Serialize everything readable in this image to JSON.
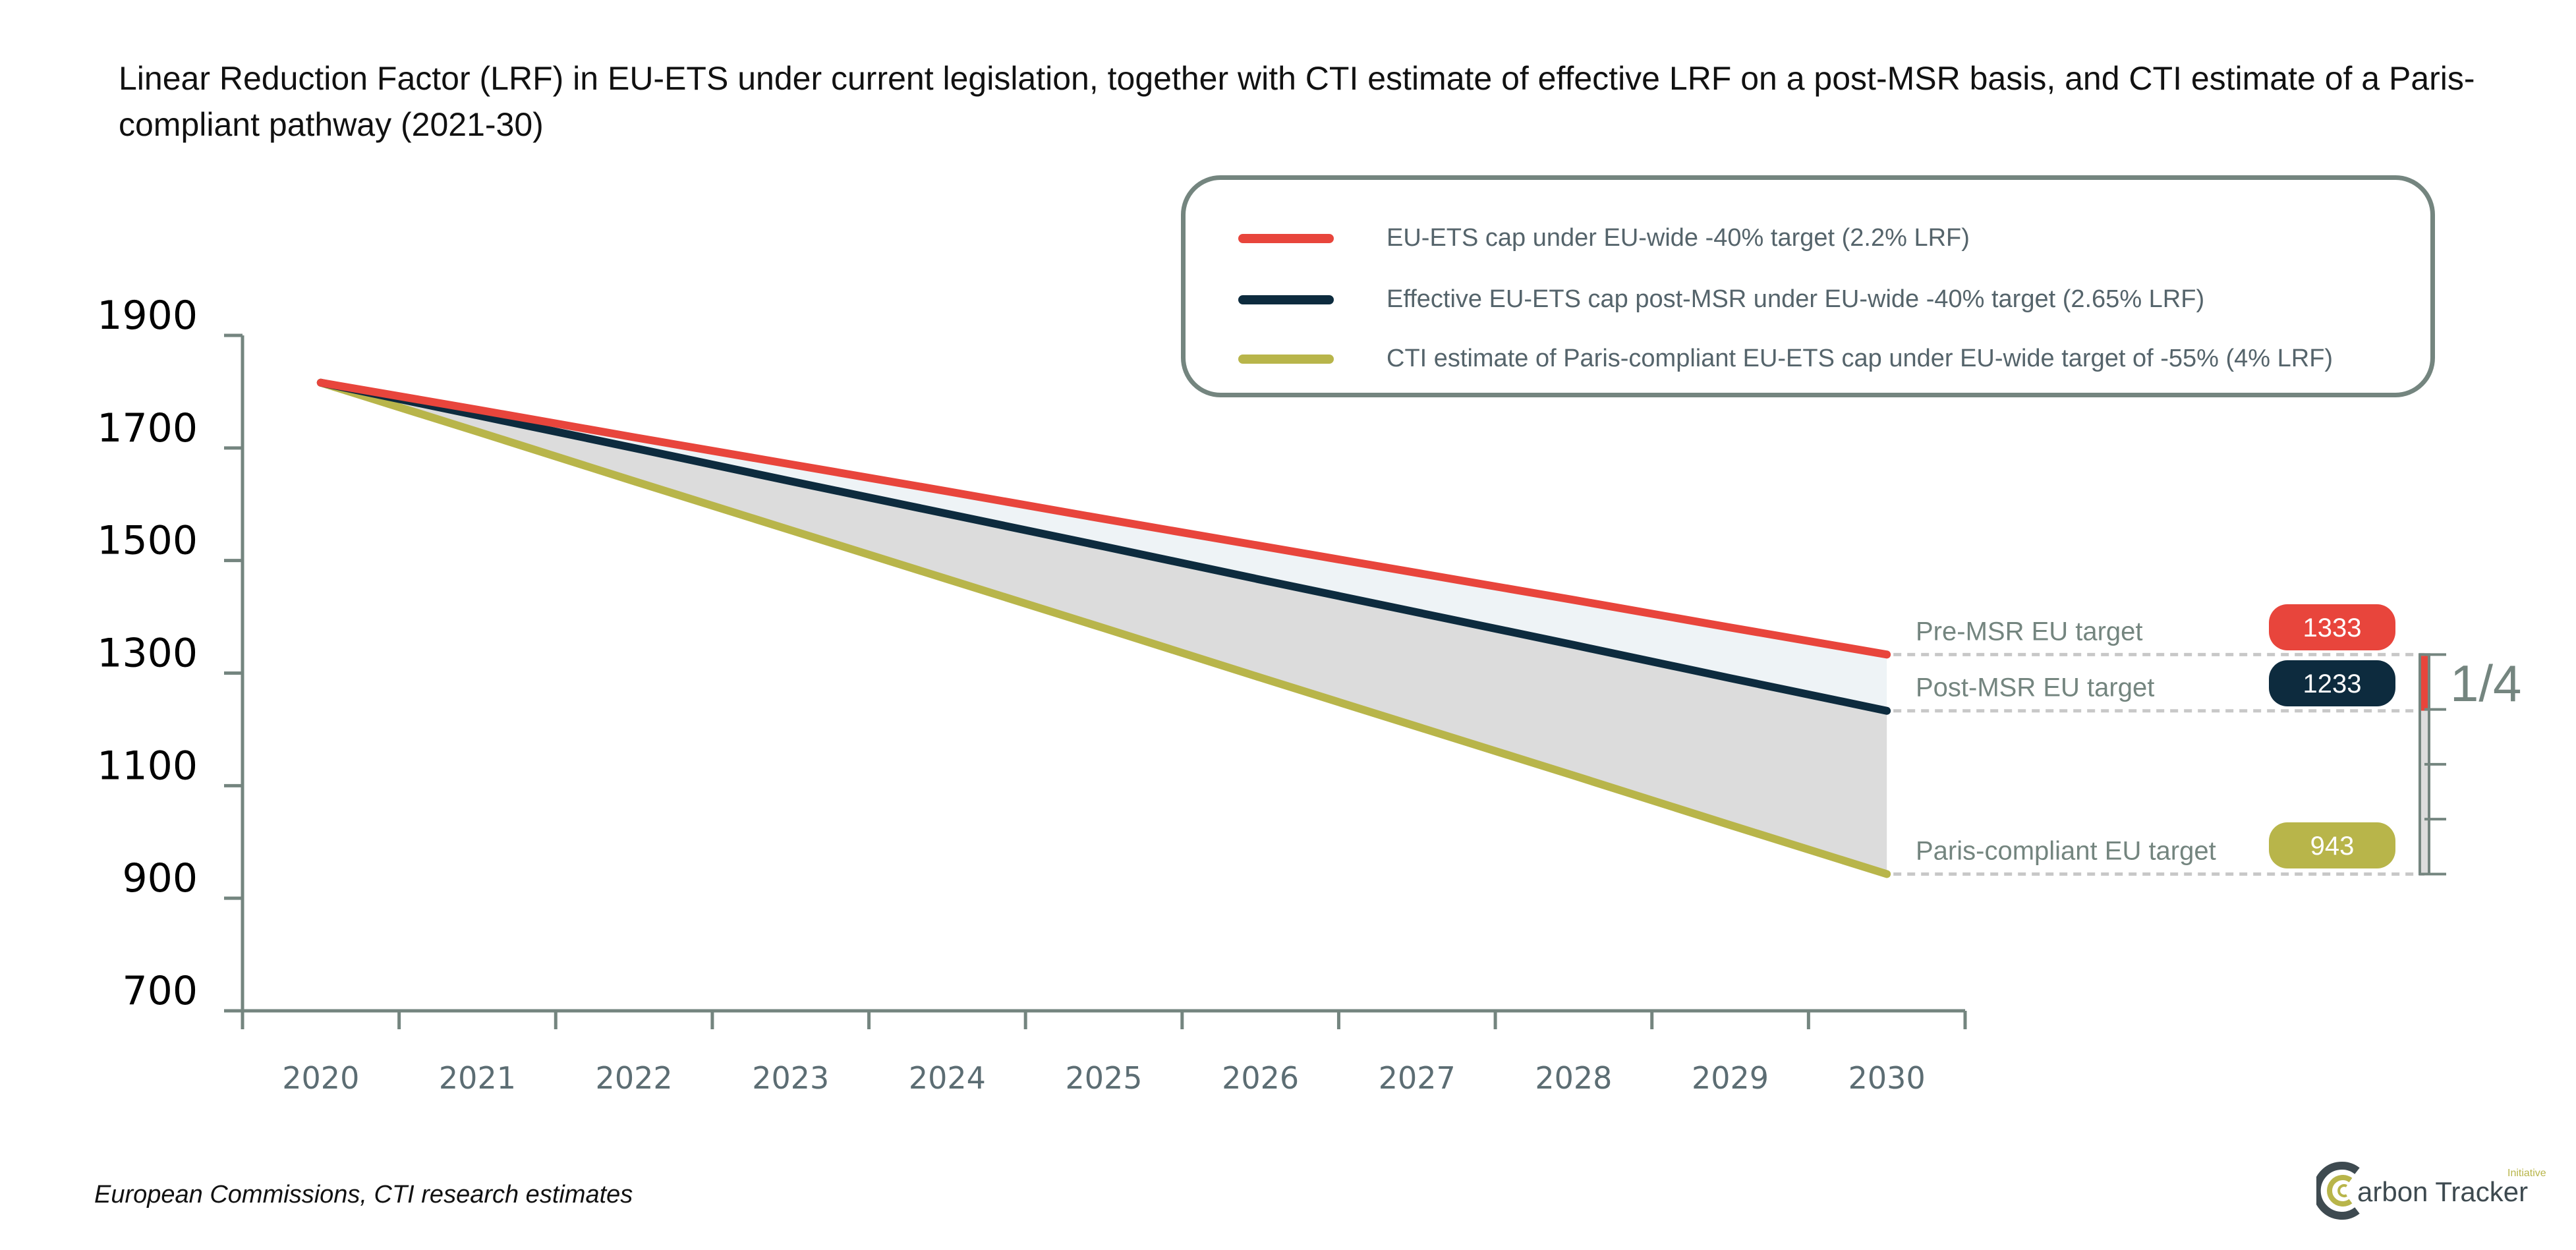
{
  "chart_data": {
    "type": "line",
    "title": "Linear Reduction Factor (LRF) in EU-ETS under current legislation, together with CTI estimate of effective LRF on a post-MSR basis, and CTI estimate of a Paris-compliant pathway (2021-30)",
    "xlabel": "",
    "ylabel": "",
    "categories": [
      "2020",
      "2021",
      "2022",
      "2023",
      "2024",
      "2025",
      "2026",
      "2027",
      "2028",
      "2029",
      "2030"
    ],
    "ylim": [
      700,
      1900
    ],
    "yticks": [
      "1900",
      "1700",
      "1500",
      "1300",
      "1100",
      "900",
      "700"
    ],
    "grid": false,
    "legend_position": "top-right",
    "series": [
      {
        "name": "EU-ETS cap under EU-wide -40% target (2.2% LRF)",
        "color": "#e8453c",
        "values": [
          1816,
          1768,
          1719,
          1671,
          1623,
          1574,
          1526,
          1478,
          1430,
          1381,
          1333
        ]
      },
      {
        "name": "Effective EU-ETS cap post-MSR under EU-wide -40% target (2.65% LRF)",
        "color": "#0d2b3e",
        "values": [
          1816,
          1758,
          1700,
          1641,
          1583,
          1525,
          1466,
          1408,
          1350,
          1291,
          1233
        ]
      },
      {
        "name": "CTI estimate of Paris-compliant EU-ETS cap under EU-wide target of -55% (4% LRF)",
        "color": "#b8b54a",
        "values": [
          1816,
          1729,
          1641,
          1554,
          1467,
          1380,
          1292,
          1205,
          1118,
          1030,
          943
        ]
      }
    ],
    "area_fills": {
      "red_to_navy": "#eef3f6",
      "navy_to_olive": "#dcdcdc"
    },
    "annotations": [
      {
        "label": "Pre-MSR EU target",
        "value": "1333",
        "y": 1333,
        "color": "#e8453c"
      },
      {
        "label": "Post-MSR EU target",
        "value": "1233",
        "y": 1233,
        "color": "#0d2b3e"
      },
      {
        "label": "Paris-compliant EU target",
        "value": "943",
        "y": 943,
        "color": "#b8b54a"
      }
    ],
    "gap_fraction": {
      "label": "1/4",
      "share": 0.25
    }
  },
  "footnote": "European Commissions, CTI research estimates",
  "logo": {
    "text": "Carbon Tracker",
    "subtext": "Initiative"
  }
}
